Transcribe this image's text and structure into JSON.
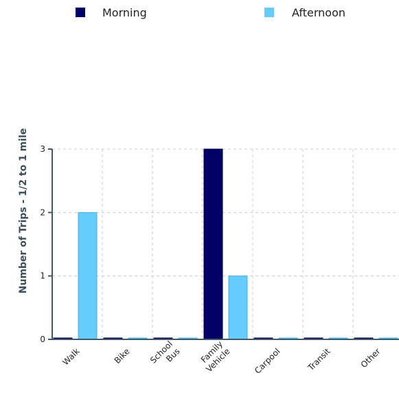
{
  "chart_data": {
    "type": "bar",
    "categories": [
      [
        "Walk"
      ],
      [
        "Bike"
      ],
      [
        "School",
        "Bus"
      ],
      [
        "Family",
        "Vehicle"
      ],
      [
        "Carpool"
      ],
      [
        "Transit"
      ],
      [
        "Other"
      ]
    ],
    "series": [
      {
        "name": "Morning",
        "color": "#000066",
        "values": [
          0,
          0,
          0,
          3,
          0,
          0,
          0
        ]
      },
      {
        "name": "Afternoon",
        "color": "#66ccff",
        "values": [
          2,
          0,
          0,
          1,
          0,
          0,
          0
        ]
      }
    ],
    "ylabel": "Number of Trips - 1/2 to 1 mile",
    "xlabel": "",
    "ylim": [
      0,
      3
    ],
    "yticks": [
      "0",
      "1",
      "2",
      "3"
    ],
    "grid": true,
    "legend_position": "top"
  }
}
